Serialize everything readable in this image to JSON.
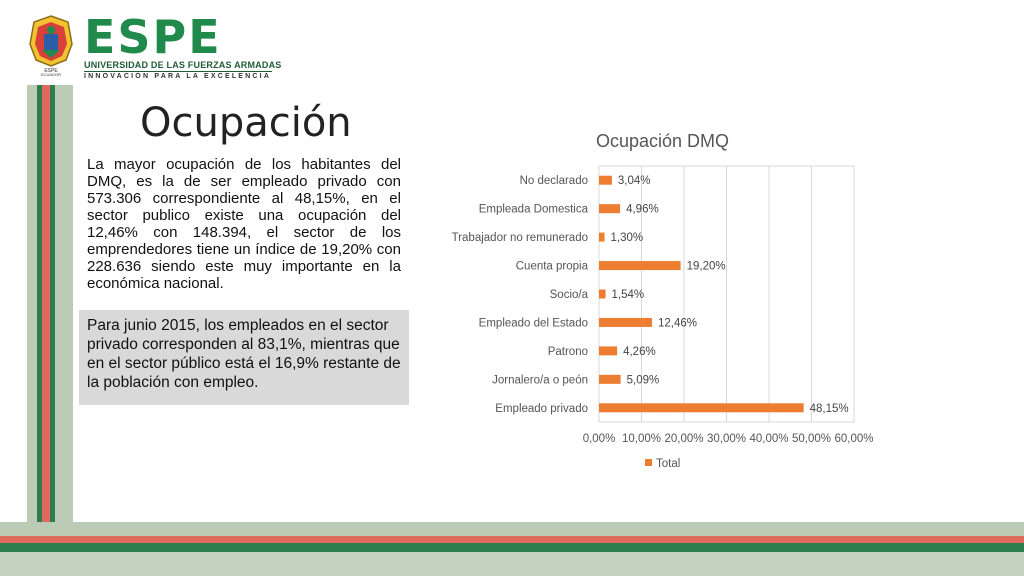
{
  "header": {
    "brand": "ESPE",
    "subtitle": "UNIVERSIDAD DE LAS FUERZAS ARMADAS",
    "tagline": "INNOVACIÓN PARA LA EXCELENCIA",
    "seal_text": "ESPE ECUADOR"
  },
  "slide": {
    "title": "Ocupación",
    "paragraph1": "La mayor ocupación de los habitantes del DMQ, es la de ser empleado privado con 573.306 correspondiente al 48,15%, en el sector publico existe una ocupación del 12,46%   con 148.394, el sector de los emprendedores tiene un índice de 19,20% con 228.636 siendo este muy importante en la económica nacional.",
    "paragraph2": "Para junio 2015, los empleados en el sector privado corresponden al 83,1%, mientras que en el sector público está el 16,9% restante de la población con empleo."
  },
  "colors": {
    "bar": "#ed7d31",
    "green": "#1f8a4c",
    "stripe_red": "#e06a5e",
    "stripe_green": "#2e7d4f",
    "stripe_sage": "#bccbb6",
    "box_gray": "#d9d9d9"
  },
  "chart_data": {
    "type": "bar",
    "orientation": "horizontal",
    "title": "Ocupación DMQ",
    "categories": [
      "No declarado",
      "Empleada Domestica",
      "Trabajador no remunerado",
      "Cuenta propia",
      "Socio/a",
      "Empleado  del Estado",
      "Patrono",
      "Jornalero/a o peón",
      "Empleado privado"
    ],
    "series": [
      {
        "name": "Total",
        "values": [
          3.04,
          4.96,
          1.3,
          19.2,
          1.54,
          12.46,
          4.26,
          5.09,
          48.15
        ],
        "labels": [
          "3,04%",
          "4,96%",
          "1,30%",
          "19,20%",
          "1,54%",
          "12,46%",
          "4,26%",
          "5,09%",
          "48,15%"
        ]
      }
    ],
    "xlim": [
      0,
      60
    ],
    "ticks": [
      0,
      10,
      20,
      30,
      40,
      50,
      60
    ],
    "tick_labels": [
      "0,00%",
      "10,00%",
      "20,00%",
      "30,00%",
      "40,00%",
      "50,00%",
      "60,00%"
    ],
    "grid": "vertical",
    "legend": "bottom"
  }
}
